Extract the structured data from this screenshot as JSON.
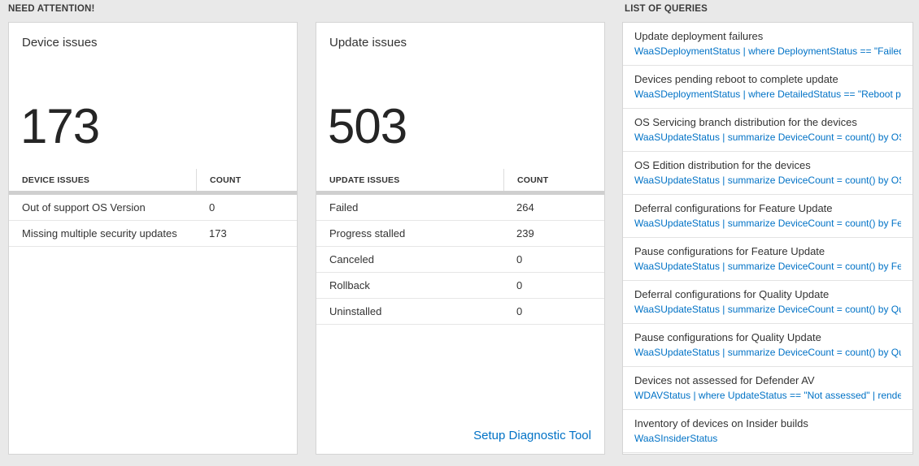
{
  "colors": {
    "accent_blue": "#0072c6",
    "page_bg": "#e9e9e9"
  },
  "sections": {
    "need_attention_label": "NEED ATTENTION!",
    "queries_label": "LIST OF QUERIES"
  },
  "device_card": {
    "title": "Device issues",
    "big_number": "173",
    "table": {
      "headers": [
        "DEVICE ISSUES",
        "COUNT"
      ],
      "rows": [
        {
          "label": "Out of support OS Version",
          "count": "0"
        },
        {
          "label": "Missing multiple security updates",
          "count": "173"
        }
      ]
    }
  },
  "update_card": {
    "title": "Update issues",
    "big_number": "503",
    "table": {
      "headers": [
        "UPDATE ISSUES",
        "COUNT"
      ],
      "rows": [
        {
          "label": "Failed",
          "count": "264"
        },
        {
          "label": "Progress stalled",
          "count": "239"
        },
        {
          "label": "Canceled",
          "count": "0"
        },
        {
          "label": "Rollback",
          "count": "0"
        },
        {
          "label": "Uninstalled",
          "count": "0"
        }
      ]
    },
    "footer_link_label": "Setup Diagnostic Tool"
  },
  "queries_panel": {
    "items": [
      {
        "title": "Update deployment failures",
        "query": "WaaSDeploymentStatus | where DeploymentStatus == \"Failed\" |..."
      },
      {
        "title": "Devices pending reboot to complete update",
        "query": "WaaSDeploymentStatus | where DetailedStatus == \"Reboot pend..."
      },
      {
        "title": "OS Servicing branch distribution for the devices",
        "query": "WaaSUpdateStatus | summarize DeviceCount = count() by OSSer..."
      },
      {
        "title": "OS Edition distribution for the devices",
        "query": "WaaSUpdateStatus | summarize DeviceCount = count() by OSEdit..."
      },
      {
        "title": "Deferral configurations for Feature Update",
        "query": "WaaSUpdateStatus | summarize DeviceCount = count() by Featur..."
      },
      {
        "title": "Pause configurations for Feature Update",
        "query": "WaaSUpdateStatus | summarize DeviceCount = count() by Featur..."
      },
      {
        "title": "Deferral configurations for Quality Update",
        "query": "WaaSUpdateStatus | summarize DeviceCount = count() by Qualit..."
      },
      {
        "title": "Pause configurations for Quality Update",
        "query": "WaaSUpdateStatus | summarize DeviceCount = count() by Qualit..."
      },
      {
        "title": "Devices not assessed for Defender AV",
        "query": "WDAVStatus | where UpdateStatus == \"Not assessed\" | render ta..."
      },
      {
        "title": "Inventory of devices on Insider builds",
        "query": "WaaSInsiderStatus"
      }
    ]
  }
}
